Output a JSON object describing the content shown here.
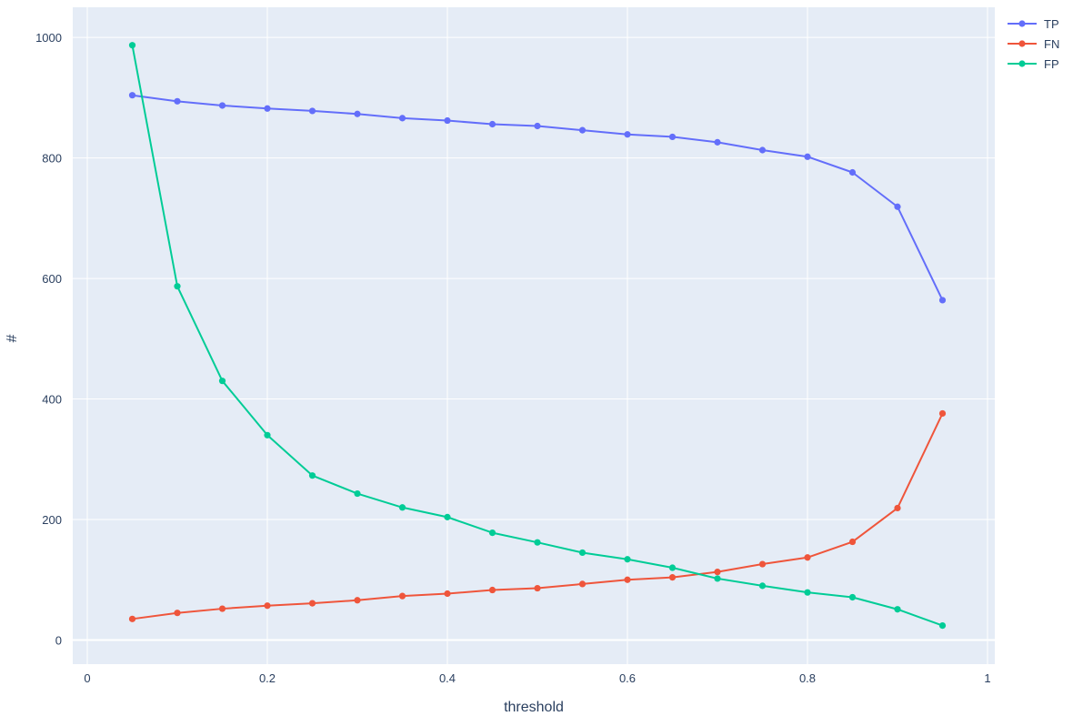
{
  "chart_data": {
    "type": "line",
    "title": "",
    "xlabel": "threshold",
    "ylabel": "#",
    "xlim": [
      0,
      1
    ],
    "ylim": [
      -40,
      1050
    ],
    "x_ticks": [
      0,
      0.2,
      0.4,
      0.6,
      0.8,
      1
    ],
    "x_tick_labels": [
      "0",
      "0.2",
      "0.4",
      "0.6",
      "0.8",
      "1"
    ],
    "y_ticks": [
      0,
      200,
      400,
      600,
      800,
      1000
    ],
    "y_tick_labels": [
      "0",
      "200",
      "400",
      "600",
      "800",
      "1000"
    ],
    "grid": true,
    "legend_position": "top-right",
    "plot_background": "#e5ecf6",
    "grid_color": "#ffffff",
    "x": [
      0.05,
      0.1,
      0.15,
      0.2,
      0.25,
      0.3,
      0.35,
      0.4,
      0.45,
      0.5,
      0.55,
      0.6,
      0.65,
      0.7,
      0.75,
      0.8,
      0.85,
      0.9,
      0.95
    ],
    "series": [
      {
        "name": "TP",
        "color": "#636efa",
        "values": [
          904,
          894,
          887,
          882,
          878,
          873,
          866,
          862,
          856,
          853,
          846,
          839,
          835,
          826,
          813,
          802,
          776,
          719,
          564
        ]
      },
      {
        "name": "FN",
        "color": "#ef553b",
        "values": [
          35,
          45,
          52,
          57,
          61,
          66,
          73,
          77,
          83,
          86,
          93,
          100,
          104,
          113,
          126,
          137,
          163,
          219,
          376
        ]
      },
      {
        "name": "FP",
        "color": "#00cc96",
        "values": [
          987,
          587,
          430,
          340,
          273,
          243,
          220,
          204,
          178,
          162,
          145,
          134,
          120,
          102,
          90,
          79,
          71,
          51,
          24
        ]
      }
    ]
  }
}
